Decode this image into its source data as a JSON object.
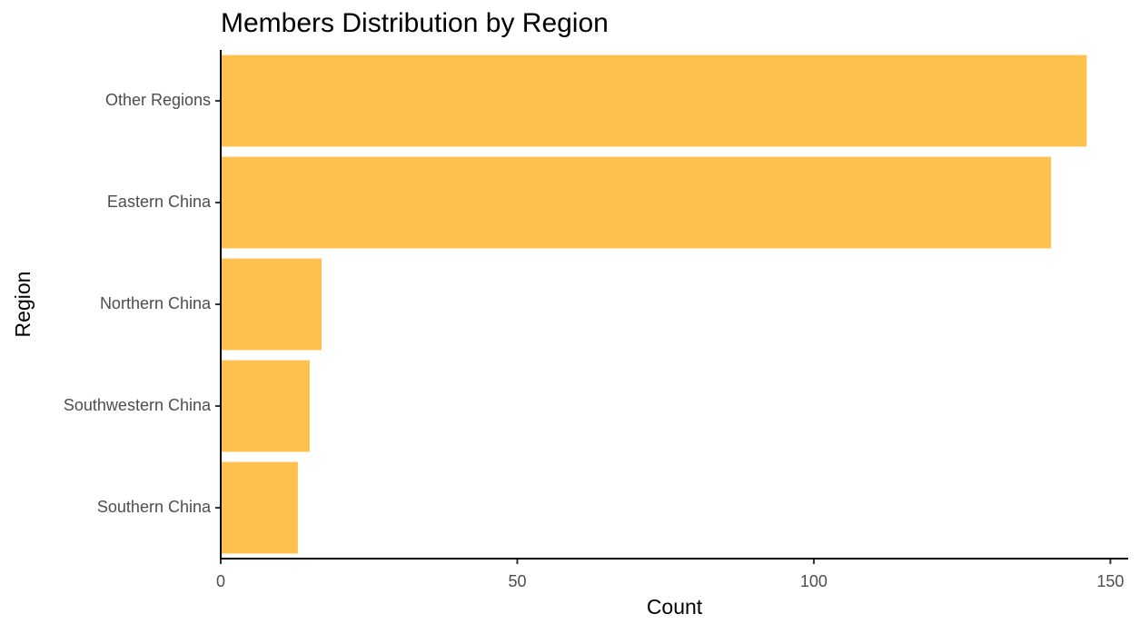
{
  "chart_data": {
    "type": "bar",
    "orientation": "horizontal",
    "title": "Members Distribution by Region",
    "xlabel": "Count",
    "ylabel": "Region",
    "categories": [
      "Other Regions",
      "Eastern China",
      "Northern China",
      "Southwestern China",
      "Southern China"
    ],
    "values": [
      146,
      140,
      17,
      15,
      13
    ],
    "xlim": [
      0,
      153
    ],
    "xticks": [
      0,
      50,
      100,
      150
    ],
    "xtick_labels": [
      "0",
      "50",
      "100",
      "150"
    ],
    "bar_color": "#FFC04D",
    "grid": false,
    "legend": "none"
  }
}
